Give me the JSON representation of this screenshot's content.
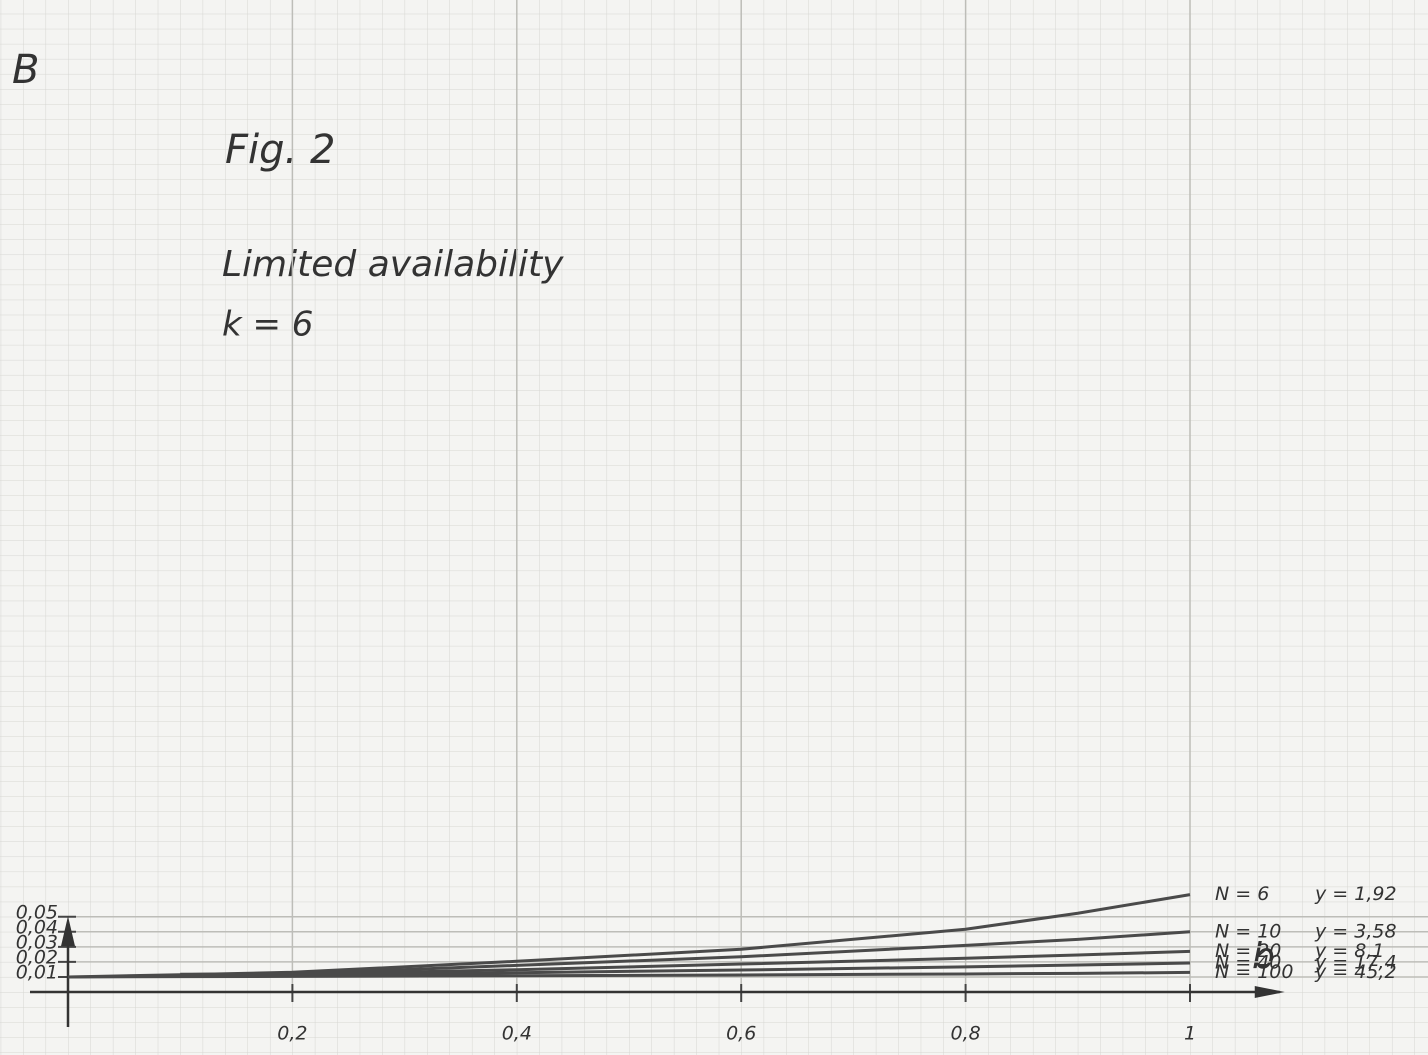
{
  "chart_data": {
    "type": "line",
    "title": "Fig. 2",
    "subtitle": "Limited availability",
    "annotation": "k = 6",
    "ylabel": "B",
    "xlabel": "b",
    "x": [
      0,
      0.1,
      0.2,
      0.4,
      0.6,
      0.8,
      0.9,
      1
    ],
    "series": [
      {
        "name": "N = 6",
        "color": "#4a4a4a",
        "values": [
          0.01,
          0.0115,
          0.0131,
          0.0204,
          0.0284,
          0.0417,
          0.0523,
          0.0647
        ],
        "label": "y = 1,92"
      },
      {
        "name": "N = 10",
        "color": "#4a4a4a",
        "values": [
          null,
          0.0118,
          0.0121,
          0.0177,
          0.0234,
          0.031,
          0.035,
          0.04
        ],
        "label": "y = 3,58"
      },
      {
        "name": "N = 20",
        "color": "#4a4a4a",
        "values": [
          null,
          0.0113,
          0.0118,
          0.0148,
          0.0186,
          0.0224,
          0.0246,
          0.027
        ],
        "label": "y = 8,1"
      },
      {
        "name": "N = 40",
        "color": "#4a4a4a",
        "values": [
          null,
          0.0108,
          0.0112,
          0.0128,
          0.0146,
          0.0167,
          0.0179,
          0.0193
        ],
        "label": "y = 17,4"
      },
      {
        "name": "N = 100",
        "color": "#4a4a4a",
        "values": [
          0.01,
          0.0102,
          0.0104,
          0.0108,
          0.0113,
          0.012,
          0.0124,
          0.013
        ],
        "label": "y = 45,2"
      }
    ],
    "xlim": [
      0,
      1.08
    ],
    "ylim": [
      0,
      0.065
    ],
    "xticks": [
      {
        "value": 0.2,
        "label": "0,2"
      },
      {
        "value": 0.4,
        "label": "0,4"
      },
      {
        "value": 0.6,
        "label": "0,6"
      },
      {
        "value": 0.8,
        "label": "0,8"
      },
      1
    ],
    "yticks": [
      {
        "value": 0.01,
        "label": "0,01"
      },
      {
        "value": 0.02,
        "label": "0,02"
      },
      {
        "value": 0.03,
        "label": "0,03"
      },
      {
        "value": 0.04,
        "label": "0,04"
      },
      {
        "value": 0.05,
        "label": "0,05"
      }
    ],
    "grid": true
  }
}
